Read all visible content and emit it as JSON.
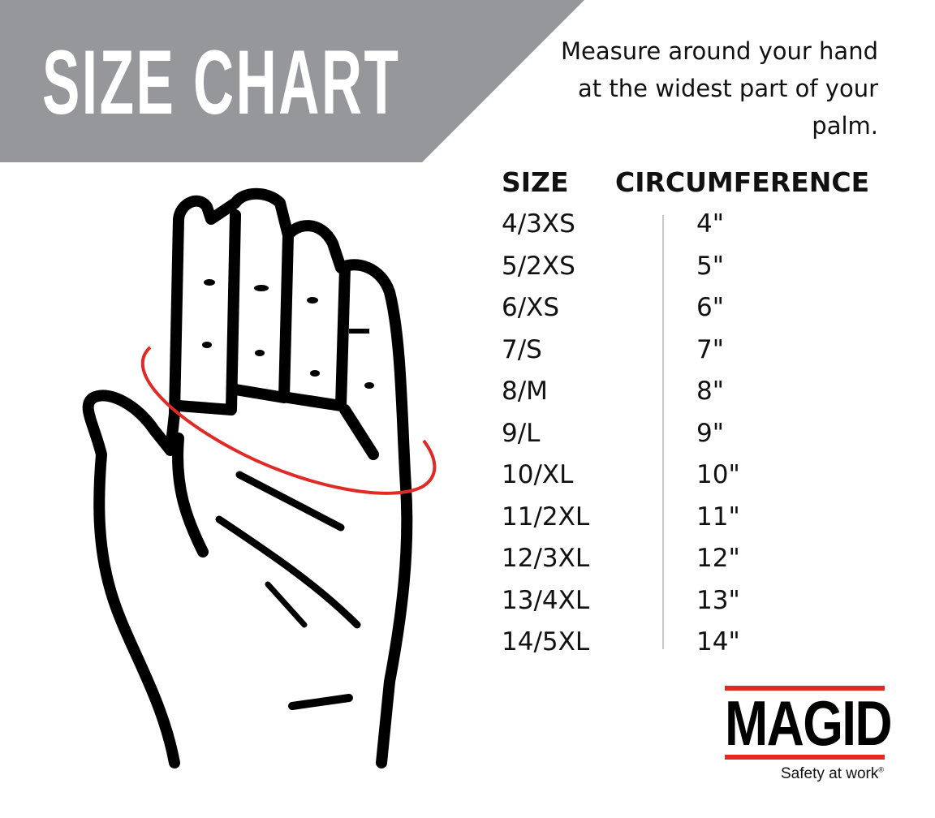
{
  "header": {
    "title": "SIZE CHART",
    "banner_color": "#96979a"
  },
  "instructions": "Measure around your hand at the widest part of your palm.",
  "table": {
    "columns": [
      "SIZE",
      "CIRCUMFERENCE"
    ],
    "rows": [
      {
        "size": "4/3XS",
        "circumference": "4\""
      },
      {
        "size": "5/2XS",
        "circumference": "5\""
      },
      {
        "size": "6/XS",
        "circumference": "6\""
      },
      {
        "size": "7/S",
        "circumference": "7\""
      },
      {
        "size": "8/M",
        "circumference": "8\""
      },
      {
        "size": "9/L",
        "circumference": "9\""
      },
      {
        "size": "10/XL",
        "circumference": "10\""
      },
      {
        "size": "11/2XL",
        "circumference": "11\""
      },
      {
        "size": "12/3XL",
        "circumference": "12\""
      },
      {
        "size": "13/4XL",
        "circumference": "13\""
      },
      {
        "size": "14/5XL",
        "circumference": "14\""
      }
    ]
  },
  "illustration": {
    "icon": "hand-outline-icon",
    "measure_line_color": "#e02a26"
  },
  "brand": {
    "name": "MAGID",
    "tagline": "Safety at work",
    "accent": "#e02a26"
  }
}
